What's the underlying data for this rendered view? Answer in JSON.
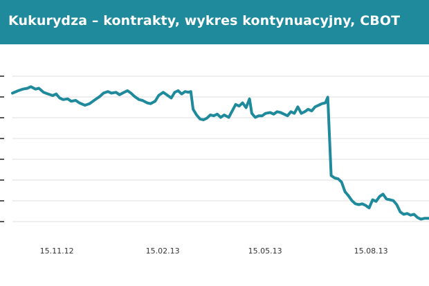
{
  "header": {
    "title": "Kukurydza – kontrakty, wykres kontynuacyjny, CBOT",
    "background": "#1f8a9b",
    "text_color": "#ffffff"
  },
  "chart_data": {
    "type": "line",
    "title": "Kukurydza – kontrakty, wykres kontynuacyjny, CBOT",
    "xlabel": "",
    "ylabel": "",
    "x_tick_labels": [
      "15.11.12",
      "15.02.13",
      "15.05.13",
      "15.08.13"
    ],
    "x_tick_dates": [
      "2012-11-15",
      "2013-02-15",
      "2013-05-15",
      "2013-08-15"
    ],
    "xlim": [
      "2012-10-24",
      "2013-10-21"
    ],
    "y_gridline_count": 8,
    "grid": "horizontal",
    "legend": "none",
    "line_color": "#1f8a9b",
    "series": [
      {
        "values": [
          [
            "2012-10-24",
            0.7
          ],
          [
            "2012-10-29",
            0.73
          ],
          [
            "2012-11-02",
            0.75
          ],
          [
            "2012-11-06",
            0.76
          ],
          [
            "2012-11-09",
            0.78
          ],
          [
            "2012-11-13",
            0.75
          ],
          [
            "2012-11-16",
            0.76
          ],
          [
            "2012-11-20",
            0.71
          ],
          [
            "2012-11-24",
            0.69
          ],
          [
            "2012-11-28",
            0.67
          ],
          [
            "2012-12-01",
            0.69
          ],
          [
            "2012-12-04",
            0.64
          ],
          [
            "2012-12-07",
            0.62
          ],
          [
            "2012-12-11",
            0.63
          ],
          [
            "2012-12-14",
            0.6
          ],
          [
            "2012-12-18",
            0.61
          ],
          [
            "2012-12-21",
            0.58
          ],
          [
            "2012-12-26",
            0.55
          ],
          [
            "2012-12-30",
            0.57
          ],
          [
            "2013-01-04",
            0.62
          ],
          [
            "2013-01-08",
            0.66
          ],
          [
            "2013-01-11",
            0.7
          ],
          [
            "2013-01-15",
            0.72
          ],
          [
            "2013-01-18",
            0.7
          ],
          [
            "2013-01-22",
            0.71
          ],
          [
            "2013-01-25",
            0.68
          ],
          [
            "2013-01-29",
            0.71
          ],
          [
            "2013-02-01",
            0.73
          ],
          [
            "2013-02-04",
            0.7
          ],
          [
            "2013-02-07",
            0.66
          ],
          [
            "2013-02-11",
            0.62
          ],
          [
            "2013-02-14",
            0.61
          ],
          [
            "2013-02-18",
            0.58
          ],
          [
            "2013-02-21",
            0.57
          ],
          [
            "2013-02-25",
            0.6
          ],
          [
            "2013-02-28",
            0.67
          ],
          [
            "2013-03-04",
            0.71
          ],
          [
            "2013-03-07",
            0.68
          ],
          [
            "2013-03-11",
            0.64
          ],
          [
            "2013-03-14",
            0.71
          ],
          [
            "2013-03-17",
            0.73
          ],
          [
            "2013-03-20",
            0.69
          ],
          [
            "2013-03-23",
            0.72
          ],
          [
            "2013-03-26",
            0.71
          ],
          [
            "2013-03-28",
            0.72
          ],
          [
            "2013-03-30",
            0.5
          ],
          [
            "2013-04-02",
            0.43
          ],
          [
            "2013-04-05",
            0.38
          ],
          [
            "2013-04-08",
            0.37
          ],
          [
            "2013-04-11",
            0.39
          ],
          [
            "2013-04-14",
            0.43
          ],
          [
            "2013-04-17",
            0.42
          ],
          [
            "2013-04-20",
            0.44
          ],
          [
            "2013-04-23",
            0.4
          ],
          [
            "2013-04-26",
            0.43
          ],
          [
            "2013-04-30",
            0.4
          ],
          [
            "2013-05-03",
            0.48
          ],
          [
            "2013-05-06",
            0.56
          ],
          [
            "2013-05-09",
            0.54
          ],
          [
            "2013-05-12",
            0.58
          ],
          [
            "2013-05-15",
            0.52
          ],
          [
            "2013-05-18",
            0.63
          ],
          [
            "2013-05-20",
            0.45
          ],
          [
            "2013-05-23",
            0.4
          ],
          [
            "2013-05-26",
            0.42
          ],
          [
            "2013-05-29",
            0.42
          ],
          [
            "2013-06-01",
            0.45
          ],
          [
            "2013-06-05",
            0.46
          ],
          [
            "2013-06-08",
            0.44
          ],
          [
            "2013-06-11",
            0.47
          ],
          [
            "2013-06-14",
            0.46
          ],
          [
            "2013-06-17",
            0.44
          ],
          [
            "2013-06-20",
            0.42
          ],
          [
            "2013-06-23",
            0.47
          ],
          [
            "2013-06-26",
            0.45
          ],
          [
            "2013-06-29",
            0.53
          ],
          [
            "2013-07-02",
            0.45
          ],
          [
            "2013-07-05",
            0.47
          ],
          [
            "2013-07-08",
            0.5
          ],
          [
            "2013-07-11",
            0.48
          ],
          [
            "2013-07-14",
            0.53
          ],
          [
            "2013-07-17",
            0.55
          ],
          [
            "2013-07-20",
            0.57
          ],
          [
            "2013-07-23",
            0.58
          ],
          [
            "2013-07-25",
            0.65
          ],
          [
            "2013-07-28",
            -0.32
          ],
          [
            "2013-07-31",
            -0.35
          ],
          [
            "2013-08-03",
            -0.36
          ],
          [
            "2013-08-06",
            -0.4
          ],
          [
            "2013-08-09",
            -0.52
          ],
          [
            "2013-08-12",
            -0.57
          ],
          [
            "2013-08-15",
            -0.63
          ],
          [
            "2013-08-18",
            -0.67
          ],
          [
            "2013-08-21",
            -0.68
          ],
          [
            "2013-08-24",
            -0.67
          ],
          [
            "2013-08-27",
            -0.69
          ],
          [
            "2013-08-30",
            -0.72
          ],
          [
            "2013-09-02",
            -0.62
          ],
          [
            "2013-09-05",
            -0.64
          ],
          [
            "2013-09-08",
            -0.58
          ],
          [
            "2013-09-11",
            -0.55
          ],
          [
            "2013-09-14",
            -0.61
          ],
          [
            "2013-09-17",
            -0.62
          ],
          [
            "2013-09-20",
            -0.63
          ],
          [
            "2013-09-23",
            -0.68
          ],
          [
            "2013-09-26",
            -0.77
          ],
          [
            "2013-09-29",
            -0.8
          ],
          [
            "2013-10-02",
            -0.79
          ],
          [
            "2013-10-05",
            -0.81
          ],
          [
            "2013-10-08",
            -0.8
          ],
          [
            "2013-10-11",
            -0.84
          ],
          [
            "2013-10-14",
            -0.86
          ],
          [
            "2013-10-17",
            -0.85
          ],
          [
            "2013-10-21",
            -0.85
          ]
        ]
      }
    ]
  }
}
